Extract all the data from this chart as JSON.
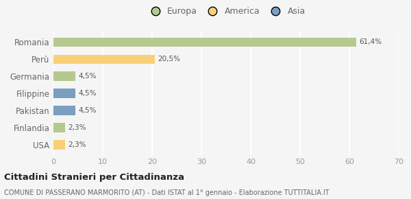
{
  "categories": [
    "Romania",
    "Perù",
    "Germania",
    "Filippine",
    "Pakistan",
    "Finlandia",
    "USA"
  ],
  "values": [
    61.4,
    20.5,
    4.5,
    4.5,
    4.5,
    2.3,
    2.3
  ],
  "labels": [
    "61,4%",
    "20,5%",
    "4,5%",
    "4,5%",
    "4,5%",
    "2,3%",
    "2,3%"
  ],
  "bar_colors": [
    "#b5c98e",
    "#f9d077",
    "#b5c98e",
    "#7a9fc0",
    "#7a9fc0",
    "#b5c98e",
    "#f9d077"
  ],
  "legend_items": [
    {
      "label": "Europa",
      "color": "#b5c98e"
    },
    {
      "label": "America",
      "color": "#f9d077"
    },
    {
      "label": "Asia",
      "color": "#7a9fc0"
    }
  ],
  "xlim": [
    0,
    70
  ],
  "xticks": [
    0,
    10,
    20,
    30,
    40,
    50,
    60,
    70
  ],
  "title": "Cittadini Stranieri per Cittadinanza",
  "subtitle": "COMUNE DI PASSERANO MARMORITO (AT) - Dati ISTAT al 1° gennaio - Elaborazione TUTTITALIA.IT",
  "background_color": "#f5f5f5",
  "grid_color": "#ffffff",
  "bar_height": 0.55,
  "label_color": "#555555",
  "ytick_color": "#666666",
  "xtick_color": "#999999"
}
